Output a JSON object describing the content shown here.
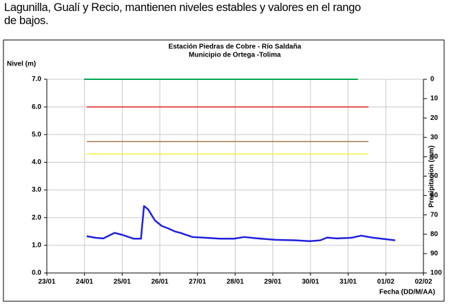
{
  "paragraph": [
    "Lagunilla, Gualí y Recio, mantienen niveles estables y valores en el rango",
    "de bajos."
  ],
  "chart_data": {
    "type": "line",
    "title": [
      "Estación Piedras de Cobre  - Río Saldaña",
      "Municipio de Ortega -Tolima"
    ],
    "ylabel": "Nivel (m)",
    "y2label": "Precipitacion (mm)",
    "xlabel": "Fecha (DD/M/AA)",
    "xlim": [
      0,
      10
    ],
    "xticks": [
      {
        "value": 0,
        "label": "23/01"
      },
      {
        "value": 1,
        "label": "24/01"
      },
      {
        "value": 2,
        "label": "25/01"
      },
      {
        "value": 3,
        "label": "26/01"
      },
      {
        "value": 4,
        "label": "27/01"
      },
      {
        "value": 5,
        "label": "28/01"
      },
      {
        "value": 6,
        "label": "29/01"
      },
      {
        "value": 7,
        "label": "30/01"
      },
      {
        "value": 8,
        "label": "31/01"
      },
      {
        "value": 9,
        "label": "01/02"
      },
      {
        "value": 10,
        "label": "02/02"
      }
    ],
    "ylim": [
      0,
      7
    ],
    "yticks": [
      {
        "value": 0,
        "label": "0.0"
      },
      {
        "value": 1,
        "label": "1.0"
      },
      {
        "value": 2,
        "label": "2.0"
      },
      {
        "value": 3,
        "label": "3.0"
      },
      {
        "value": 4,
        "label": "4.0"
      },
      {
        "value": 5,
        "label": "5.0"
      },
      {
        "value": 6,
        "label": "6.0"
      },
      {
        "value": 7,
        "label": "7.0"
      }
    ],
    "y2lim": [
      0,
      100
    ],
    "y2_inverted": true,
    "y2ticks": [
      0,
      10,
      20,
      30,
      40,
      50,
      60,
      70,
      80,
      90,
      100
    ],
    "grid": true,
    "series": [
      {
        "color": "#00a651",
        "width": 2,
        "x": [
          0.99,
          8.26
        ],
        "values": [
          7,
          7
        ]
      },
      {
        "color": "#e0201b",
        "width": 1.5,
        "x": [
          1.06,
          8.54
        ],
        "values": [
          6,
          6
        ]
      },
      {
        "color": "#a0784a",
        "width": 1.5,
        "x": [
          1.06,
          8.54
        ],
        "values": [
          4.75,
          4.75
        ]
      },
      {
        "color": "#f5f03c",
        "width": 1.5,
        "x": [
          1.06,
          8.54
        ],
        "values": [
          4.3,
          4.3
        ]
      },
      {
        "color": "#1f1fe0",
        "width": 2.5,
        "x": [
          1.06,
          1.3,
          1.5,
          1.8,
          2.0,
          2.3,
          2.5,
          2.58,
          2.69,
          2.87,
          3.05,
          3.24,
          3.4,
          3.55,
          3.65,
          3.87,
          4.24,
          4.6,
          4.97,
          5.25,
          5.5,
          6.07,
          6.62,
          6.98,
          7.26,
          7.44,
          7.7,
          8.08,
          8.35,
          8.63,
          9.0,
          9.25
        ],
        "values": [
          1.33,
          1.27,
          1.25,
          1.45,
          1.38,
          1.24,
          1.24,
          2.42,
          2.3,
          1.9,
          1.7,
          1.6,
          1.5,
          1.45,
          1.4,
          1.3,
          1.27,
          1.24,
          1.24,
          1.3,
          1.26,
          1.2,
          1.18,
          1.15,
          1.18,
          1.28,
          1.25,
          1.27,
          1.35,
          1.28,
          1.22,
          1.18
        ]
      }
    ]
  }
}
